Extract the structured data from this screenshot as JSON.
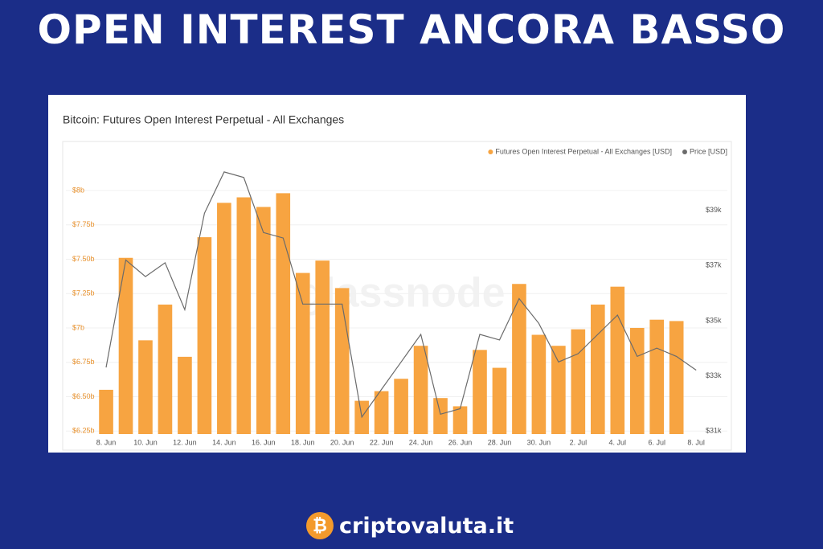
{
  "headline": "OPEN INTEREST ANCORA BASSO",
  "brand": "criptovaluta.it",
  "watermark": "glassnode",
  "chart_data": {
    "type": "bar",
    "title": "Bitcoin: Futures Open Interest Perpetual - All Exchanges",
    "categories": [
      "8. Jun",
      null,
      "10. Jun",
      null,
      "12. Jun",
      null,
      "14. Jun",
      null,
      "16. Jun",
      null,
      "18. Jun",
      null,
      "20. Jun",
      null,
      "22. Jun",
      null,
      "24. Jun",
      null,
      "26. Jun",
      null,
      "28. Jun",
      null,
      "30. Jun",
      null,
      "2. Jul",
      null,
      "4. Jul",
      null,
      "6. Jul",
      null,
      "8. Jul"
    ],
    "series": [
      {
        "name": "Futures Open Interest Perpetual - All Exchanges [USD]",
        "color": "#f7a441",
        "values": [
          6.55,
          7.51,
          6.91,
          7.17,
          6.79,
          7.66,
          7.91,
          7.95,
          7.88,
          7.98,
          7.4,
          7.49,
          7.29,
          6.47,
          6.54,
          6.63,
          6.87,
          6.49,
          6.43,
          6.84,
          6.71,
          7.32,
          6.95,
          6.87,
          6.99,
          7.17,
          7.3,
          7.0,
          7.06,
          7.05,
          null
        ]
      },
      {
        "name": "Price [USD]",
        "color": "#6b6b6b",
        "type": "line",
        "axis": "y2",
        "values": [
          33.3,
          37.2,
          36.6,
          37.1,
          35.4,
          38.9,
          40.4,
          40.2,
          38.2,
          38.0,
          35.6,
          35.6,
          35.6,
          31.5,
          32.5,
          33.5,
          34.5,
          31.6,
          31.8,
          34.5,
          34.3,
          35.8,
          34.9,
          33.5,
          33.8,
          34.5,
          35.2,
          33.7,
          34.0,
          33.7,
          33.2
        ]
      }
    ],
    "ylim": [
      6.228,
      8.333
    ],
    "yticks": [
      {
        "value": 6.25,
        "label": "$6.25b"
      },
      {
        "value": 6.5,
        "label": "$6.50b"
      },
      {
        "value": 6.75,
        "label": "$6.75b"
      },
      {
        "value": 7,
        "label": "$7b"
      },
      {
        "value": 7.25,
        "label": "$7.25b"
      },
      {
        "value": 7.5,
        "label": "$7.50b"
      },
      {
        "value": 7.75,
        "label": "$7.75b"
      },
      {
        "value": 8,
        "label": "$8b"
      }
    ],
    "y2lim": [
      30.88,
      41.39
    ],
    "y2ticks": [
      {
        "value": 31,
        "label": "$31k"
      },
      {
        "value": 33,
        "label": "$33k"
      },
      {
        "value": 35,
        "label": "$35k"
      },
      {
        "value": 37,
        "label": "$37k"
      },
      {
        "value": 39,
        "label": "$39k"
      }
    ],
    "grid": true,
    "legend": "top-right"
  }
}
